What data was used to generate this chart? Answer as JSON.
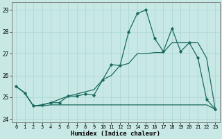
{
  "xlabel": "Humidex (Indice chaleur)",
  "bg_color": "#c8e8e6",
  "line_color": "#1a6b5e",
  "grid_color": "#a8d4d0",
  "x_values": [
    0,
    1,
    2,
    3,
    4,
    5,
    6,
    7,
    8,
    9,
    10,
    11,
    12,
    13,
    14,
    15,
    16,
    17,
    18,
    19,
    20,
    21,
    22,
    23
  ],
  "line_flat": [
    25.5,
    25.2,
    24.6,
    24.6,
    24.65,
    24.65,
    24.65,
    24.65,
    24.65,
    24.65,
    24.65,
    24.65,
    24.65,
    24.65,
    24.65,
    24.65,
    24.65,
    24.65,
    24.65,
    24.65,
    24.65,
    24.65,
    24.65,
    24.45
  ],
  "line_zigzag": [
    25.5,
    25.2,
    24.6,
    24.65,
    24.75,
    24.75,
    25.05,
    25.05,
    25.15,
    25.1,
    25.8,
    26.5,
    26.45,
    28.0,
    28.85,
    29.0,
    27.7,
    27.1,
    28.15,
    27.1,
    27.5,
    26.8,
    24.9,
    24.45
  ],
  "line_trend": [
    25.5,
    25.2,
    24.6,
    24.65,
    24.75,
    24.9,
    25.05,
    25.15,
    25.25,
    25.35,
    25.8,
    26.0,
    26.45,
    26.55,
    27.0,
    27.0,
    27.05,
    27.05,
    27.5,
    27.5,
    27.5,
    27.5,
    26.8,
    24.45
  ],
  "ylim": [
    23.85,
    29.35
  ],
  "yticks": [
    24,
    25,
    26,
    27,
    28,
    29
  ],
  "xticks": [
    0,
    1,
    2,
    3,
    4,
    5,
    6,
    7,
    8,
    9,
    10,
    11,
    12,
    13,
    14,
    15,
    16,
    17,
    18,
    19,
    20,
    21,
    22,
    23
  ]
}
